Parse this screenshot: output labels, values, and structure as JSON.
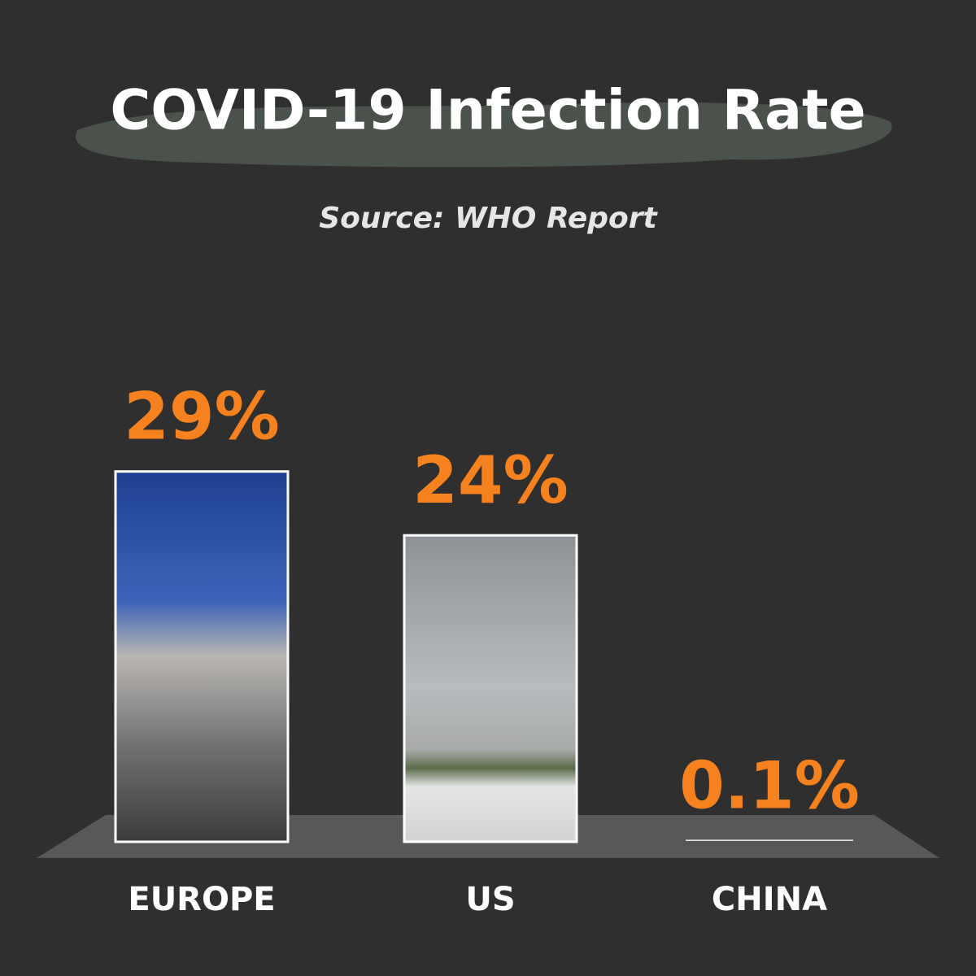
{
  "chart_data": {
    "type": "bar",
    "title": "COVID-19 Infection Rate",
    "subtitle": "Source: WHO Report",
    "categories": [
      "EUROPE",
      "US",
      "CHINA"
    ],
    "values": [
      29,
      24,
      0.1
    ],
    "value_labels": [
      "29%",
      "24%",
      "0.1%"
    ],
    "color": "#f5821f"
  }
}
